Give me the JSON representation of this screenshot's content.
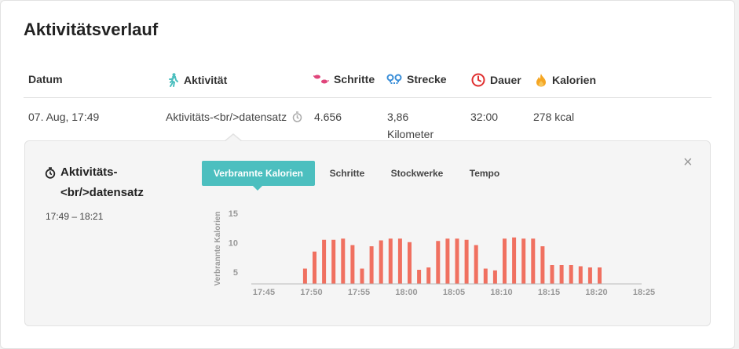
{
  "title": "Aktivitätsverlauf",
  "columns": {
    "datum": "Datum",
    "aktivitaet": "Aktivität",
    "schritte": "Schritte",
    "strecke": "Strecke",
    "dauer": "Dauer",
    "kalorien": "Kalorien"
  },
  "icons": {
    "aktivitaet": "walking-person-icon",
    "schritte": "footprints-icon",
    "strecke": "route-pins-icon",
    "dauer": "clock-icon",
    "kalorien": "flame-icon",
    "record": "stopwatch-icon",
    "close": "close-icon"
  },
  "colors": {
    "teal": "#4cbfbf",
    "pink": "#e0457b",
    "blue": "#3a8ed8",
    "red": "#e03030",
    "orange": "#f5a623",
    "bar": "#f07060"
  },
  "row": {
    "datum": "07. Aug, 17:49",
    "aktivitaet": "Aktivitäts-<br/>datensatz",
    "schritte": "4.656",
    "strecke_line1": "3,86",
    "strecke_line2": "Kilometer",
    "dauer": "32:00",
    "kalorien": "278 kcal"
  },
  "detail": {
    "title_line1": "Aktivitäts-",
    "title_line2": "<br/>datensatz",
    "time_range": "17:49 – 18:21",
    "tabs": [
      "Verbrannte Kalorien",
      "Schritte",
      "Stockwerke",
      "Tempo"
    ],
    "active_tab": 0,
    "close_symbol": "×"
  },
  "chart_data": {
    "type": "bar",
    "ylabel": "Verbrannte Kalorien",
    "ylim": [
      3,
      15
    ],
    "yticks": [
      5,
      10,
      15
    ],
    "xticks": [
      "17:45",
      "17:50",
      "17:55",
      "18:00",
      "18:05",
      "18:10",
      "18:15",
      "18:20",
      "18:25"
    ],
    "x_start_minute": -5,
    "grid": false,
    "values": [
      5.6,
      8.5,
      10.5,
      10.5,
      10.7,
      9.6,
      5.6,
      9.4,
      10.4,
      10.7,
      10.7,
      10.1,
      5.4,
      5.8,
      10.3,
      10.7,
      10.7,
      10.5,
      9.6,
      5.6,
      5.3,
      10.7,
      10.9,
      10.7,
      10.7,
      9.4,
      6.2,
      6.2,
      6.2,
      6.0,
      5.8,
      5.8
    ]
  }
}
